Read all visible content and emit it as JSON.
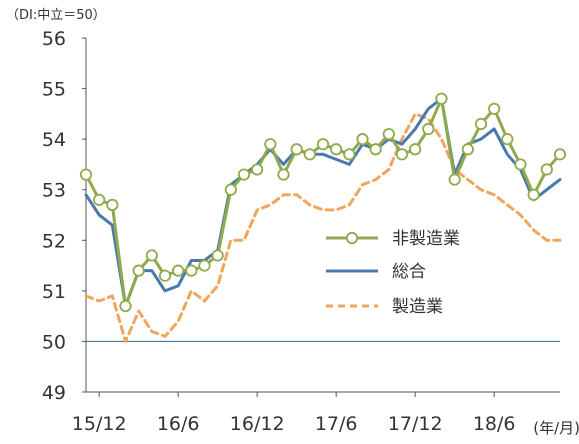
{
  "chart_data": {
    "type": "line",
    "unit_note": "（DI:中立＝50）",
    "x_unit_label": "(年/月)",
    "ylim": [
      49,
      56
    ],
    "y_ticks": [
      "49",
      "50",
      "51",
      "52",
      "53",
      "54",
      "55",
      "56"
    ],
    "x_tick_labels": [
      "15/12",
      "16/6",
      "16/12",
      "17/6",
      "17/12",
      "18/6"
    ],
    "reference_line": {
      "y": 50,
      "color": "#4a7396"
    },
    "grid": false,
    "legend_position": "right",
    "x": [
      "15/11",
      "15/12",
      "16/1",
      "16/2",
      "16/3",
      "16/4",
      "16/5",
      "16/6",
      "16/7",
      "16/8",
      "16/9",
      "16/10",
      "16/11",
      "16/12",
      "17/1",
      "17/2",
      "17/3",
      "17/4",
      "17/5",
      "17/6",
      "17/7",
      "17/8",
      "17/9",
      "17/10",
      "17/11",
      "17/12",
      "18/1",
      "18/2",
      "18/3",
      "18/4",
      "18/5",
      "18/6",
      "18/7",
      "18/8",
      "18/9",
      "18/10",
      "18/11"
    ],
    "series": [
      {
        "name": "非製造業",
        "color": "#8faa4a",
        "style": "solid-circle-markers",
        "values": [
          53.3,
          52.8,
          52.7,
          50.7,
          51.4,
          51.7,
          51.3,
          51.4,
          51.4,
          51.5,
          51.7,
          53.0,
          53.3,
          53.4,
          53.9,
          53.3,
          53.8,
          53.7,
          53.9,
          53.8,
          53.7,
          54.0,
          53.8,
          54.1,
          53.7,
          53.8,
          54.2,
          54.8,
          53.2,
          53.8,
          54.3,
          54.6,
          54.0,
          53.5,
          52.9,
          53.4,
          53.7
        ]
      },
      {
        "name": "総合",
        "color": "#4a79b0",
        "style": "solid",
        "values": [
          52.9,
          52.5,
          52.3,
          50.7,
          51.4,
          51.4,
          51.0,
          51.1,
          51.6,
          51.6,
          51.8,
          53.1,
          53.3,
          53.5,
          53.8,
          53.5,
          53.8,
          53.7,
          53.7,
          53.6,
          53.5,
          53.9,
          53.8,
          54.0,
          53.9,
          54.2,
          54.6,
          54.8,
          53.3,
          53.9,
          54.0,
          54.2,
          53.7,
          53.4,
          52.8,
          53.0,
          53.2
        ]
      },
      {
        "name": "製造業",
        "color": "#f0a55c",
        "style": "dashed",
        "values": [
          50.9,
          50.8,
          50.9,
          50.0,
          50.6,
          50.2,
          50.1,
          50.4,
          51.0,
          50.8,
          51.1,
          52.0,
          52.0,
          52.6,
          52.7,
          52.9,
          52.9,
          52.7,
          52.6,
          52.6,
          52.7,
          53.1,
          53.2,
          53.4,
          54.0,
          54.5,
          54.4,
          54.0,
          53.4,
          53.2,
          53.0,
          52.9,
          52.7,
          52.5,
          52.2,
          52.0,
          52.0
        ]
      }
    ]
  }
}
